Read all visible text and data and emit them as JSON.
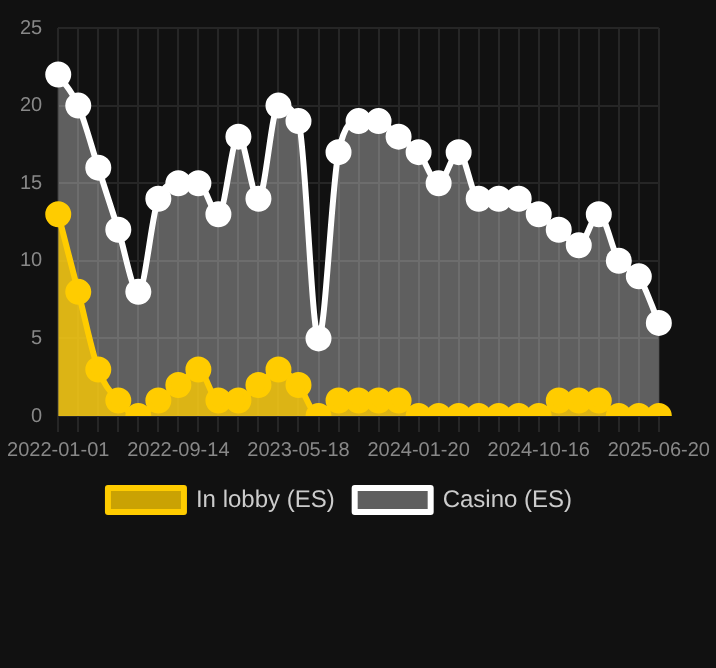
{
  "chart_data": {
    "type": "area",
    "categories": [
      "2022-01-01",
      null,
      null,
      null,
      null,
      null,
      "2022-09-14",
      null,
      null,
      null,
      null,
      null,
      "2023-05-18",
      null,
      null,
      null,
      null,
      null,
      "2024-01-20",
      null,
      null,
      null,
      null,
      null,
      "2024-10-16",
      null,
      null,
      null,
      null,
      null,
      "2025-06-20"
    ],
    "series": [
      {
        "name": "In lobby (ES)",
        "color": "#ffcc00",
        "values": [
          13,
          8,
          3,
          1,
          0,
          1,
          2,
          3,
          1,
          1,
          2,
          3,
          2,
          0,
          1,
          1,
          1,
          1,
          0,
          0,
          0,
          0,
          0,
          0,
          0,
          1,
          1,
          1,
          0,
          0,
          0
        ]
      },
      {
        "name": "Casino (ES)",
        "color": "#ffffff",
        "values": [
          22,
          20,
          16,
          12,
          8,
          14,
          15,
          15,
          13,
          18,
          14,
          20,
          19,
          5,
          17,
          19,
          19,
          18,
          17,
          15,
          17,
          14,
          14,
          14,
          13,
          12,
          11,
          13,
          10,
          9,
          6
        ]
      }
    ],
    "ylim": [
      0,
      25
    ],
    "yticks": [
      0,
      5,
      10,
      15,
      20,
      25
    ],
    "grid": true,
    "legend": "bottom",
    "marker": "circle"
  }
}
